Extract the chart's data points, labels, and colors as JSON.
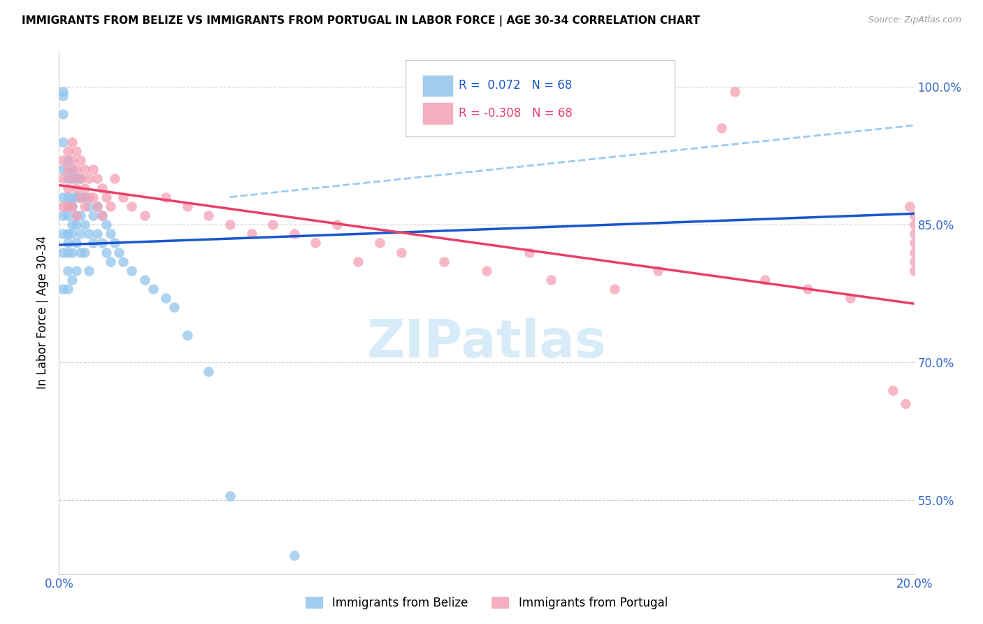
{
  "title": "IMMIGRANTS FROM BELIZE VS IMMIGRANTS FROM PORTUGAL IN LABOR FORCE | AGE 30-34 CORRELATION CHART",
  "source": "Source: ZipAtlas.com",
  "ylabel": "In Labor Force | Age 30-34",
  "xlim": [
    0.0,
    0.2
  ],
  "ylim": [
    0.47,
    1.04
  ],
  "right_yticks": [
    1.0,
    0.85,
    0.7,
    0.55
  ],
  "right_yticklabels": [
    "100.0%",
    "85.0%",
    "70.0%",
    "55.0%"
  ],
  "belize_color": "#92C5ED",
  "portugal_color": "#F4A0B5",
  "trend_belize_color": "#1A56CC",
  "trend_portugal_color": "#E8406A",
  "dashed_line_color": "#92C5ED",
  "watermark": "ZIPatlas",
  "belize_trend_x0": 0.0,
  "belize_trend_y0": 0.828,
  "belize_trend_x1": 0.2,
  "belize_trend_y1": 0.862,
  "portugal_trend_x0": 0.0,
  "portugal_trend_y0": 0.893,
  "portugal_trend_x1": 0.2,
  "portugal_trend_y1": 0.764,
  "dashed_trend_x0": 0.04,
  "dashed_trend_y0": 0.88,
  "dashed_trend_x1": 0.2,
  "dashed_trend_y1": 0.958,
  "belize_x": [
    0.001,
    0.001,
    0.001,
    0.001,
    0.001,
    0.001,
    0.001,
    0.001,
    0.001,
    0.001,
    0.002,
    0.002,
    0.002,
    0.002,
    0.002,
    0.002,
    0.002,
    0.002,
    0.002,
    0.002,
    0.003,
    0.003,
    0.003,
    0.003,
    0.003,
    0.003,
    0.003,
    0.003,
    0.004,
    0.004,
    0.004,
    0.004,
    0.004,
    0.004,
    0.005,
    0.005,
    0.005,
    0.005,
    0.005,
    0.006,
    0.006,
    0.006,
    0.007,
    0.007,
    0.007,
    0.008,
    0.008,
    0.009,
    0.009,
    0.01,
    0.01,
    0.011,
    0.011,
    0.012,
    0.012,
    0.013,
    0.014,
    0.015,
    0.017,
    0.02,
    0.022,
    0.025,
    0.027,
    0.03,
    0.035,
    0.04,
    0.055
  ],
  "belize_y": [
    0.995,
    0.99,
    0.97,
    0.94,
    0.91,
    0.88,
    0.86,
    0.84,
    0.82,
    0.78,
    0.92,
    0.9,
    0.88,
    0.87,
    0.86,
    0.84,
    0.83,
    0.82,
    0.8,
    0.78,
    0.91,
    0.9,
    0.88,
    0.87,
    0.85,
    0.84,
    0.82,
    0.79,
    0.9,
    0.88,
    0.86,
    0.85,
    0.83,
    0.8,
    0.9,
    0.88,
    0.86,
    0.84,
    0.82,
    0.88,
    0.85,
    0.82,
    0.87,
    0.84,
    0.8,
    0.86,
    0.83,
    0.87,
    0.84,
    0.86,
    0.83,
    0.85,
    0.82,
    0.84,
    0.81,
    0.83,
    0.82,
    0.81,
    0.8,
    0.79,
    0.78,
    0.77,
    0.76,
    0.73,
    0.69,
    0.555,
    0.49
  ],
  "portugal_x": [
    0.001,
    0.001,
    0.001,
    0.002,
    0.002,
    0.002,
    0.002,
    0.003,
    0.003,
    0.003,
    0.003,
    0.004,
    0.004,
    0.004,
    0.004,
    0.005,
    0.005,
    0.005,
    0.006,
    0.006,
    0.006,
    0.007,
    0.007,
    0.008,
    0.008,
    0.009,
    0.009,
    0.01,
    0.01,
    0.011,
    0.012,
    0.013,
    0.015,
    0.017,
    0.02,
    0.025,
    0.03,
    0.035,
    0.04,
    0.045,
    0.05,
    0.055,
    0.06,
    0.065,
    0.07,
    0.075,
    0.08,
    0.09,
    0.1,
    0.11,
    0.115,
    0.13,
    0.14,
    0.155,
    0.158,
    0.165,
    0.175,
    0.185,
    0.195,
    0.198,
    0.199,
    0.2,
    0.2,
    0.2,
    0.2,
    0.2,
    0.2,
    0.2
  ],
  "portugal_y": [
    0.92,
    0.9,
    0.87,
    0.93,
    0.91,
    0.89,
    0.87,
    0.94,
    0.92,
    0.9,
    0.87,
    0.93,
    0.91,
    0.89,
    0.86,
    0.92,
    0.9,
    0.88,
    0.91,
    0.89,
    0.87,
    0.9,
    0.88,
    0.91,
    0.88,
    0.9,
    0.87,
    0.89,
    0.86,
    0.88,
    0.87,
    0.9,
    0.88,
    0.87,
    0.86,
    0.88,
    0.87,
    0.86,
    0.85,
    0.84,
    0.85,
    0.84,
    0.83,
    0.85,
    0.81,
    0.83,
    0.82,
    0.81,
    0.8,
    0.82,
    0.79,
    0.78,
    0.8,
    0.955,
    0.995,
    0.79,
    0.78,
    0.77,
    0.67,
    0.655,
    0.87,
    0.86,
    0.85,
    0.84,
    0.83,
    0.82,
    0.81,
    0.8
  ]
}
